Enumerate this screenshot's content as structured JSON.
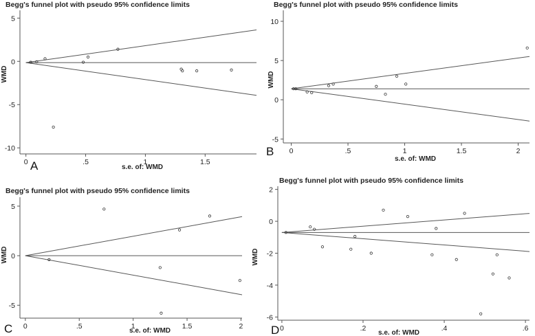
{
  "chart_data": [
    {
      "panel": "A",
      "type": "scatter",
      "title": "Begg's funnel plot with pseudo 95% confidence limits",
      "xlabel": "s.e. of: WMD",
      "ylabel": "WMD",
      "xlim": [
        -0.05,
        1.93
      ],
      "ylim": [
        -10.7,
        5.9
      ],
      "xticks": [
        0,
        0.5,
        1,
        1.5
      ],
      "xtick_labels": [
        "0",
        ".5",
        "1",
        "1.5"
      ],
      "yticks": [
        -10,
        -5,
        0,
        5
      ],
      "ytick_labels": [
        "-10",
        "-5",
        "0",
        "5"
      ],
      "pooled_estimate": -0.15,
      "ci_slope": 1.96,
      "points": [
        {
          "x": 0.04,
          "y": -0.1
        },
        {
          "x": 0.09,
          "y": -0.05
        },
        {
          "x": 0.16,
          "y": 0.3
        },
        {
          "x": 0.23,
          "y": -7.6
        },
        {
          "x": 0.48,
          "y": -0.1
        },
        {
          "x": 0.52,
          "y": 0.5
        },
        {
          "x": 0.77,
          "y": 1.4
        },
        {
          "x": 1.3,
          "y": -0.9
        },
        {
          "x": 1.31,
          "y": -1.1
        },
        {
          "x": 1.43,
          "y": -1.1
        },
        {
          "x": 1.72,
          "y": -1.0
        }
      ]
    },
    {
      "panel": "B",
      "type": "scatter",
      "title": "Begg's funnel plot with pseudo 95% confidence limits",
      "xlabel": "s.e. of: WMD",
      "ylabel": "WMD",
      "xlim": [
        -0.07,
        2.1
      ],
      "ylim": [
        -5.5,
        11.4
      ],
      "xticks": [
        0,
        0.5,
        1,
        1.5,
        2
      ],
      "xtick_labels": [
        "0",
        ".5",
        "1",
        "1.5",
        "2"
      ],
      "yticks": [
        -5,
        0,
        5,
        10
      ],
      "ytick_labels": [
        "-5",
        "0",
        "5",
        "10"
      ],
      "pooled_estimate": 1.4,
      "ci_slope": 1.96,
      "points": [
        {
          "x": 0.02,
          "y": 1.4
        },
        {
          "x": 0.04,
          "y": 1.4
        },
        {
          "x": 0.14,
          "y": 1.0
        },
        {
          "x": 0.18,
          "y": 0.9
        },
        {
          "x": 0.33,
          "y": 1.8
        },
        {
          "x": 0.37,
          "y": 2.0
        },
        {
          "x": 0.75,
          "y": 1.7
        },
        {
          "x": 0.83,
          "y": 0.7
        },
        {
          "x": 0.93,
          "y": 3.0
        },
        {
          "x": 1.01,
          "y": 2.0
        },
        {
          "x": 2.08,
          "y": 6.6
        }
      ]
    },
    {
      "panel": "C",
      "type": "scatter",
      "title": "Begg's funnel plot with pseudo 95% confidence limits",
      "xlabel": "s.e. of: WMD",
      "ylabel": "WMD",
      "xlim": [
        -0.05,
        2.01
      ],
      "ylim": [
        -6.3,
        5.9
      ],
      "xticks": [
        0,
        0.5,
        1,
        1.5,
        2
      ],
      "xtick_labels": [
        "0",
        ".5",
        "1",
        "1.5",
        "2"
      ],
      "yticks": [
        -5,
        0,
        5
      ],
      "ytick_labels": [
        "-5",
        "0",
        "5"
      ],
      "pooled_estimate": 0,
      "ci_slope": 1.96,
      "points": [
        {
          "x": 0.22,
          "y": -0.4
        },
        {
          "x": 0.73,
          "y": 4.7
        },
        {
          "x": 1.25,
          "y": -1.2
        },
        {
          "x": 1.26,
          "y": -5.8
        },
        {
          "x": 1.43,
          "y": 2.6
        },
        {
          "x": 1.71,
          "y": 4.0
        },
        {
          "x": 1.99,
          "y": -2.5
        }
      ]
    },
    {
      "panel": "D",
      "type": "scatter",
      "title": "Begg's funnel plot with pseudo 95% confidence limits",
      "xlabel": "s.e. of: WMD",
      "ylabel": "WMD",
      "xlim": [
        -0.01,
        0.61
      ],
      "ylim": [
        -6.2,
        2.2
      ],
      "xticks": [
        0,
        0.2,
        0.4,
        0.6
      ],
      "xtick_labels": [
        "0",
        ".2",
        ".4",
        ".6"
      ],
      "yticks": [
        -6,
        -4,
        -2,
        0,
        2
      ],
      "ytick_labels": [
        "-6",
        "-4",
        "-2",
        "0",
        "2"
      ],
      "pooled_estimate": -0.7,
      "ci_slope": 1.96,
      "points": [
        {
          "x": 0.01,
          "y": -0.7
        },
        {
          "x": 0.07,
          "y": -0.35
        },
        {
          "x": 0.08,
          "y": -0.5
        },
        {
          "x": 0.1,
          "y": -1.6
        },
        {
          "x": 0.17,
          "y": -1.75
        },
        {
          "x": 0.18,
          "y": -0.95
        },
        {
          "x": 0.22,
          "y": -2.0
        },
        {
          "x": 0.25,
          "y": 0.7
        },
        {
          "x": 0.31,
          "y": 0.3
        },
        {
          "x": 0.37,
          "y": -2.1
        },
        {
          "x": 0.38,
          "y": -0.45
        },
        {
          "x": 0.43,
          "y": -2.4
        },
        {
          "x": 0.45,
          "y": 0.5
        },
        {
          "x": 0.49,
          "y": -5.8
        },
        {
          "x": 0.52,
          "y": -3.3
        },
        {
          "x": 0.53,
          "y": -2.1
        },
        {
          "x": 0.56,
          "y": -3.55
        }
      ]
    }
  ]
}
